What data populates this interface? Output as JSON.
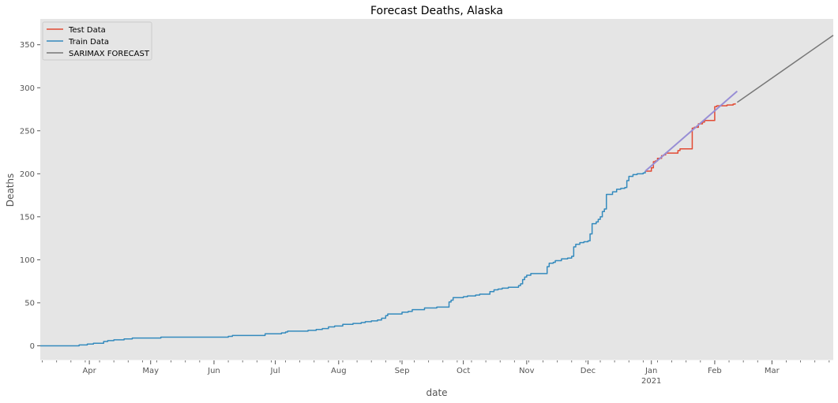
{
  "chart_data": {
    "type": "line",
    "title": "Forecast Deaths, Alaska",
    "xlabel": "date",
    "ylabel": "Deaths",
    "xlim": [
      "2020-03-08",
      "2021-03-31"
    ],
    "ylim": [
      -17,
      380
    ],
    "y_ticks": [
      0,
      50,
      100,
      150,
      200,
      250,
      300,
      350
    ],
    "x_ticks": [
      {
        "date": "2020-04-01",
        "label": "Apr"
      },
      {
        "date": "2020-05-01",
        "label": "May"
      },
      {
        "date": "2020-06-01",
        "label": "Jun"
      },
      {
        "date": "2020-07-01",
        "label": "Jul"
      },
      {
        "date": "2020-08-01",
        "label": "Aug"
      },
      {
        "date": "2020-09-01",
        "label": "Sep"
      },
      {
        "date": "2020-10-01",
        "label": "Oct"
      },
      {
        "date": "2020-11-01",
        "label": "Nov"
      },
      {
        "date": "2020-12-01",
        "label": "Dec"
      },
      {
        "date": "2021-01-01",
        "label": "Jan",
        "sublabel": "2021"
      },
      {
        "date": "2021-02-01",
        "label": "Feb"
      },
      {
        "date": "2021-03-01",
        "label": "Mar"
      }
    ],
    "grid": false,
    "legend": "top-left",
    "colors": {
      "test": "#E24A33",
      "train": "#348ABD",
      "forecast": "#777777",
      "fit": "#988ED5",
      "plot_background": "#E5E5E5"
    },
    "series": [
      {
        "name": "Train Data",
        "color": "#348ABD",
        "step": true,
        "points": [
          [
            "2020-03-08",
            0
          ],
          [
            "2020-03-26",
            0
          ],
          [
            "2020-03-27",
            1
          ],
          [
            "2020-03-30",
            1
          ],
          [
            "2020-03-31",
            2
          ],
          [
            "2020-04-03",
            3
          ],
          [
            "2020-04-07",
            3
          ],
          [
            "2020-04-08",
            5
          ],
          [
            "2020-04-10",
            6
          ],
          [
            "2020-04-13",
            7
          ],
          [
            "2020-04-18",
            8
          ],
          [
            "2020-04-22",
            9
          ],
          [
            "2020-05-05",
            9
          ],
          [
            "2020-05-06",
            10
          ],
          [
            "2020-06-07",
            10
          ],
          [
            "2020-06-08",
            11
          ],
          [
            "2020-06-10",
            12
          ],
          [
            "2020-06-24",
            12
          ],
          [
            "2020-06-26",
            14
          ],
          [
            "2020-07-02",
            14
          ],
          [
            "2020-07-04",
            15
          ],
          [
            "2020-07-06",
            16
          ],
          [
            "2020-07-07",
            17
          ],
          [
            "2020-07-16",
            17
          ],
          [
            "2020-07-17",
            18
          ],
          [
            "2020-07-20",
            18
          ],
          [
            "2020-07-21",
            19
          ],
          [
            "2020-07-24",
            20
          ],
          [
            "2020-07-27",
            22
          ],
          [
            "2020-07-30",
            23
          ],
          [
            "2020-08-03",
            25
          ],
          [
            "2020-08-07",
            25
          ],
          [
            "2020-08-08",
            26
          ],
          [
            "2020-08-12",
            27
          ],
          [
            "2020-08-14",
            28
          ],
          [
            "2020-08-17",
            29
          ],
          [
            "2020-08-20",
            30
          ],
          [
            "2020-08-22",
            32
          ],
          [
            "2020-08-24",
            35
          ],
          [
            "2020-08-25",
            37
          ],
          [
            "2020-08-31",
            37
          ],
          [
            "2020-09-01",
            39
          ],
          [
            "2020-09-04",
            40
          ],
          [
            "2020-09-06",
            42
          ],
          [
            "2020-09-11",
            42
          ],
          [
            "2020-09-12",
            44
          ],
          [
            "2020-09-17",
            44
          ],
          [
            "2020-09-18",
            45
          ],
          [
            "2020-09-23",
            45
          ],
          [
            "2020-09-24",
            51
          ],
          [
            "2020-09-25",
            53
          ],
          [
            "2020-09-26",
            56
          ],
          [
            "2020-09-29",
            56
          ],
          [
            "2020-10-01",
            57
          ],
          [
            "2020-10-03",
            58
          ],
          [
            "2020-10-06",
            58
          ],
          [
            "2020-10-07",
            59
          ],
          [
            "2020-10-09",
            60
          ],
          [
            "2020-10-13",
            60
          ],
          [
            "2020-10-14",
            63
          ],
          [
            "2020-10-16",
            65
          ],
          [
            "2020-10-18",
            66
          ],
          [
            "2020-10-20",
            67
          ],
          [
            "2020-10-22",
            67
          ],
          [
            "2020-10-23",
            68
          ],
          [
            "2020-10-27",
            68
          ],
          [
            "2020-10-28",
            70
          ],
          [
            "2020-10-29",
            72
          ],
          [
            "2020-10-30",
            77
          ],
          [
            "2020-10-31",
            80
          ],
          [
            "2020-11-01",
            82
          ],
          [
            "2020-11-03",
            84
          ],
          [
            "2020-11-10",
            84
          ],
          [
            "2020-11-11",
            92
          ],
          [
            "2020-11-12",
            96
          ],
          [
            "2020-11-14",
            97
          ],
          [
            "2020-11-15",
            99
          ],
          [
            "2020-11-17",
            99
          ],
          [
            "2020-11-18",
            101
          ],
          [
            "2020-11-21",
            102
          ],
          [
            "2020-11-23",
            104
          ],
          [
            "2020-11-24",
            115
          ],
          [
            "2020-11-25",
            118
          ],
          [
            "2020-11-27",
            120
          ],
          [
            "2020-11-29",
            121
          ],
          [
            "2020-12-01",
            122
          ],
          [
            "2020-12-02",
            130
          ],
          [
            "2020-12-03",
            142
          ],
          [
            "2020-12-05",
            144
          ],
          [
            "2020-12-06",
            147
          ],
          [
            "2020-12-07",
            150
          ],
          [
            "2020-12-08",
            156
          ],
          [
            "2020-12-09",
            159
          ],
          [
            "2020-12-10",
            176
          ],
          [
            "2020-12-12",
            176
          ],
          [
            "2020-12-13",
            179
          ],
          [
            "2020-12-15",
            182
          ],
          [
            "2020-12-17",
            183
          ],
          [
            "2020-12-19",
            184
          ],
          [
            "2020-12-20",
            192
          ],
          [
            "2020-12-21",
            197
          ],
          [
            "2020-12-23",
            199
          ],
          [
            "2020-12-25",
            200
          ],
          [
            "2020-12-28",
            201
          ],
          [
            "2020-12-29",
            203
          ]
        ]
      },
      {
        "name": "Test Data",
        "color": "#E24A33",
        "step": true,
        "points": [
          [
            "2020-12-29",
            203
          ],
          [
            "2021-01-01",
            207
          ],
          [
            "2021-01-02",
            214
          ],
          [
            "2021-01-03",
            215
          ],
          [
            "2021-01-04",
            218
          ],
          [
            "2021-01-06",
            221
          ],
          [
            "2021-01-07",
            222
          ],
          [
            "2021-01-08",
            224
          ],
          [
            "2021-01-12",
            224
          ],
          [
            "2021-01-14",
            227
          ],
          [
            "2021-01-15",
            229
          ],
          [
            "2021-01-20",
            229
          ],
          [
            "2021-01-21",
            253
          ],
          [
            "2021-01-22",
            254
          ],
          [
            "2021-01-24",
            258
          ],
          [
            "2021-01-26",
            260
          ],
          [
            "2021-01-27",
            262
          ],
          [
            "2021-01-31",
            262
          ],
          [
            "2021-02-01",
            278
          ],
          [
            "2021-02-02",
            279
          ],
          [
            "2021-02-06",
            279
          ],
          [
            "2021-02-07",
            280
          ],
          [
            "2021-02-10",
            281
          ],
          [
            "2021-02-11",
            282
          ]
        ]
      },
      {
        "name": "SARIMAX FORECAST",
        "color": "#777777",
        "step": false,
        "points": [
          [
            "2021-02-12",
            283
          ],
          [
            "2021-03-31",
            361
          ]
        ]
      },
      {
        "name": "",
        "color": "#988ED5",
        "step": false,
        "points": [
          [
            "2020-12-29",
            203
          ],
          [
            "2021-02-12",
            296
          ]
        ]
      }
    ]
  }
}
